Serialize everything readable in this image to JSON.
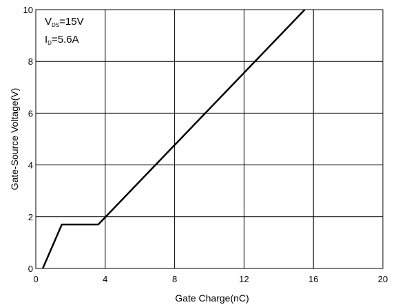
{
  "chart_data": {
    "type": "line",
    "title": "",
    "xlabel": "Gate Charge(nC)",
    "ylabel": "Gate-Source Voltage(V)",
    "xlim": [
      0,
      20
    ],
    "ylim": [
      0,
      10
    ],
    "x_ticks": [
      0,
      4,
      8,
      12,
      16,
      20
    ],
    "y_ticks": [
      0,
      2,
      4,
      6,
      8,
      10
    ],
    "x_tick_labels": [
      "0",
      "4",
      "8",
      "12",
      "16",
      "20"
    ],
    "y_tick_labels": [
      "0",
      "2",
      "4",
      "6",
      "8",
      "10"
    ],
    "grid": true,
    "series": [
      {
        "x": [
          0.4,
          1.5,
          3.6,
          15.5
        ],
        "y": [
          0.0,
          1.7,
          1.7,
          10.0
        ]
      }
    ],
    "annotations": {
      "line1": {
        "main": "V",
        "sub": "DS",
        "value": "=15V"
      },
      "line2": {
        "main": "I",
        "sub": "D",
        "value": "=5.6A"
      }
    },
    "colors": {
      "line": "#000000",
      "grid": "#000000",
      "background": "#ffffff"
    }
  }
}
